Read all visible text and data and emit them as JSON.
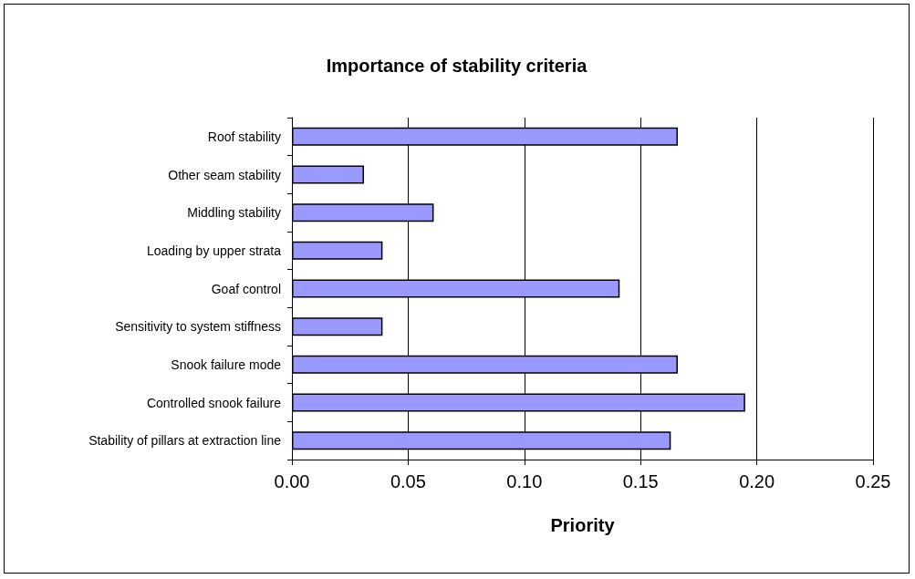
{
  "chart_data": {
    "type": "bar",
    "orientation": "horizontal",
    "title": "Importance of stability criteria",
    "xlabel": "Priority",
    "categories": [
      "Roof stability",
      "Other seam stability",
      "Middling stability",
      "Loading by upper strata",
      "Goaf control",
      "Sensitivity to system stiffness",
      "Snook failure mode",
      "Controlled snook failure",
      "Stability of pillars at extraction line"
    ],
    "values": [
      0.166,
      0.031,
      0.061,
      0.039,
      0.141,
      0.039,
      0.166,
      0.195,
      0.163
    ],
    "color": "#9999ff",
    "xlim": [
      0,
      0.25
    ],
    "xticks": [
      {
        "value": 0,
        "label": "0.00"
      },
      {
        "value": 0.05,
        "label": "0.05"
      },
      {
        "value": 0.1,
        "label": "0.10"
      },
      {
        "value": 0.15,
        "label": "0.15"
      },
      {
        "value": 0.2,
        "label": "0.20"
      },
      {
        "value": 0.25,
        "label": "0.25"
      }
    ],
    "grid": "x"
  }
}
